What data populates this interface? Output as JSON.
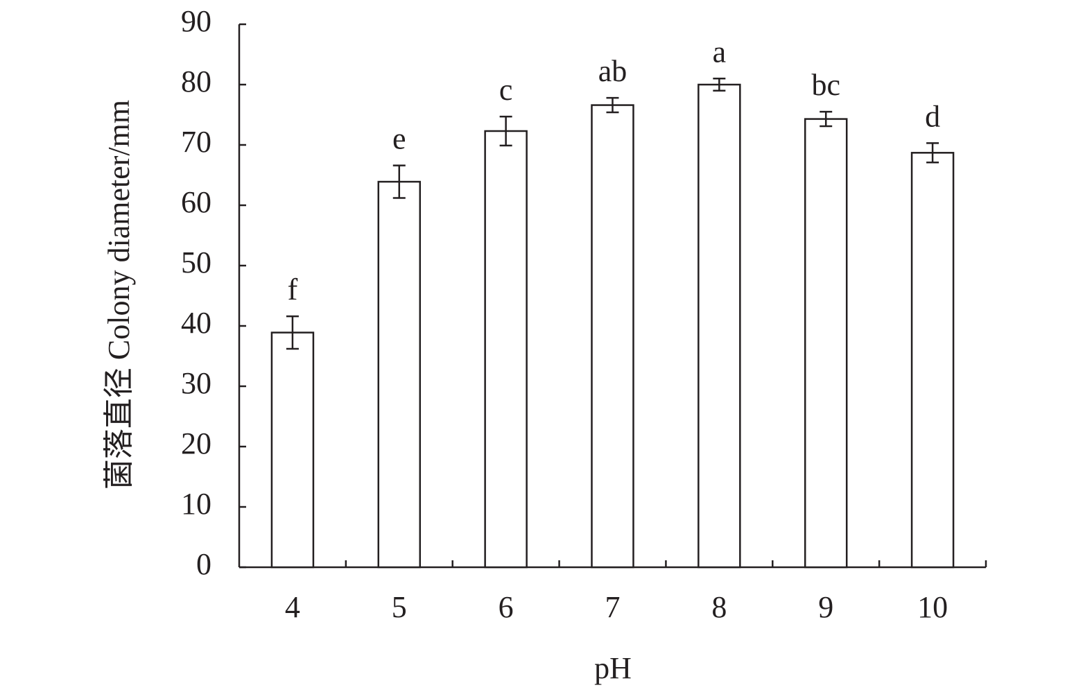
{
  "chart_data": {
    "type": "bar",
    "x_label": "pH",
    "y_label": "菌落直径 Colony diameter/mm",
    "categories": [
      "4",
      "5",
      "6",
      "7",
      "8",
      "9",
      "10"
    ],
    "values": [
      38.9,
      63.9,
      72.3,
      76.6,
      80,
      74.3,
      68.7
    ],
    "errors": [
      2.7,
      2.7,
      2.4,
      1.2,
      1,
      1.2,
      1.6
    ],
    "labels": [
      "f",
      "e",
      "c",
      "ab",
      "a",
      "bc",
      "d"
    ],
    "color": "#ffffff",
    "ylim": [
      0,
      90
    ],
    "yticks": [
      0,
      10,
      20,
      30,
      40,
      50,
      60,
      70,
      80,
      90
    ]
  }
}
